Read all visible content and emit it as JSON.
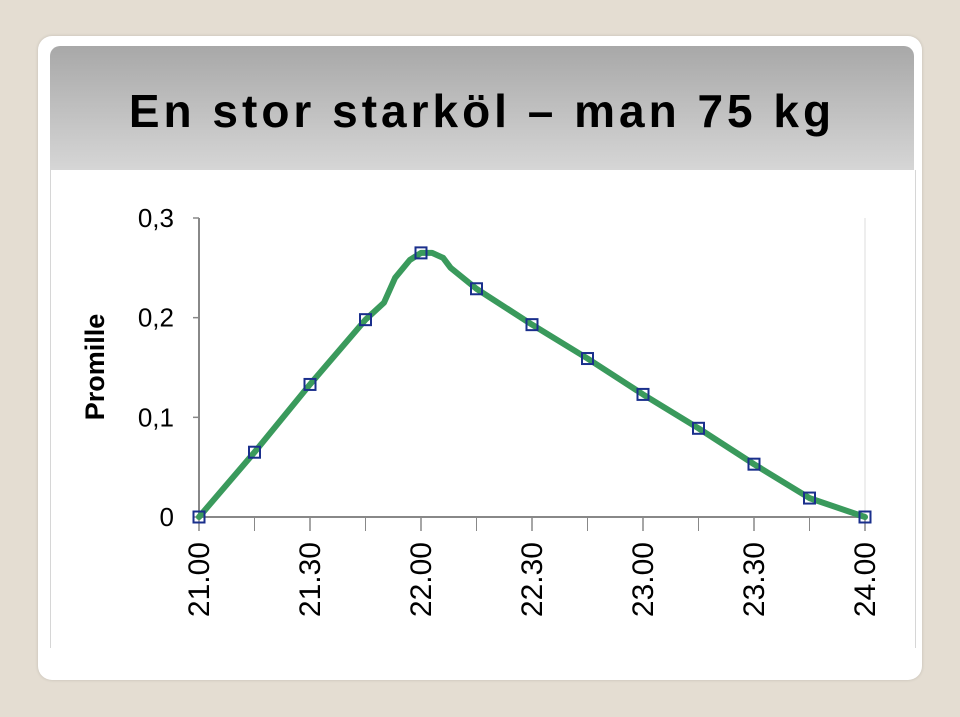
{
  "title": "En stor starköl – man 75 kg",
  "colors": {
    "line": "#3a9a5c",
    "marker": "#1a2f8c",
    "axis": "#888888"
  },
  "chart_data": {
    "type": "line",
    "title": "En stor starköl – man 75 kg",
    "ylabel": "Promille",
    "xlabel": "",
    "ylim": [
      0,
      0.3
    ],
    "yticks": [
      {
        "value": 0,
        "label": "0"
      },
      {
        "value": 0.1,
        "label": "0,1"
      },
      {
        "value": 0.2,
        "label": "0,2"
      },
      {
        "value": 0.3,
        "label": "0,3"
      }
    ],
    "xlim": [
      0,
      180
    ],
    "xticks": [
      {
        "value": 0,
        "label": "21.00"
      },
      {
        "value": 30,
        "label": "21.30"
      },
      {
        "value": 60,
        "label": "22.00"
      },
      {
        "value": 90,
        "label": "22.30"
      },
      {
        "value": 120,
        "label": "23.00"
      },
      {
        "value": 150,
        "label": "23.30"
      },
      {
        "value": 180,
        "label": "24.00"
      }
    ],
    "minor_ticks": [
      15,
      45,
      75,
      105,
      135,
      165
    ],
    "grid": false,
    "series": [
      {
        "values": [
          {
            "x": 0,
            "y": 0
          },
          {
            "x": 15,
            "y": 0.065
          },
          {
            "x": 30,
            "y": 0.133
          },
          {
            "x": 45,
            "y": 0.198
          },
          {
            "x": 50,
            "y": 0.215
          },
          {
            "x": 53,
            "y": 0.24
          },
          {
            "x": 57,
            "y": 0.258
          },
          {
            "x": 60,
            "y": 0.265
          },
          {
            "x": 63,
            "y": 0.265
          },
          {
            "x": 66,
            "y": 0.26
          },
          {
            "x": 68,
            "y": 0.25
          },
          {
            "x": 75,
            "y": 0.229
          },
          {
            "x": 90,
            "y": 0.193
          },
          {
            "x": 105,
            "y": 0.159
          },
          {
            "x": 120,
            "y": 0.123
          },
          {
            "x": 135,
            "y": 0.089
          },
          {
            "x": 150,
            "y": 0.053
          },
          {
            "x": 165,
            "y": 0.019
          },
          {
            "x": 180,
            "y": 0
          }
        ]
      }
    ],
    "markers": [
      {
        "x": 0,
        "y": 0
      },
      {
        "x": 15,
        "y": 0.065
      },
      {
        "x": 30,
        "y": 0.133
      },
      {
        "x": 45,
        "y": 0.198
      },
      {
        "x": 60,
        "y": 0.265
      },
      {
        "x": 75,
        "y": 0.229
      },
      {
        "x": 90,
        "y": 0.193
      },
      {
        "x": 105,
        "y": 0.159
      },
      {
        "x": 120,
        "y": 0.123
      },
      {
        "x": 135,
        "y": 0.089
      },
      {
        "x": 150,
        "y": 0.053
      },
      {
        "x": 165,
        "y": 0.019
      },
      {
        "x": 180,
        "y": 0
      }
    ]
  }
}
